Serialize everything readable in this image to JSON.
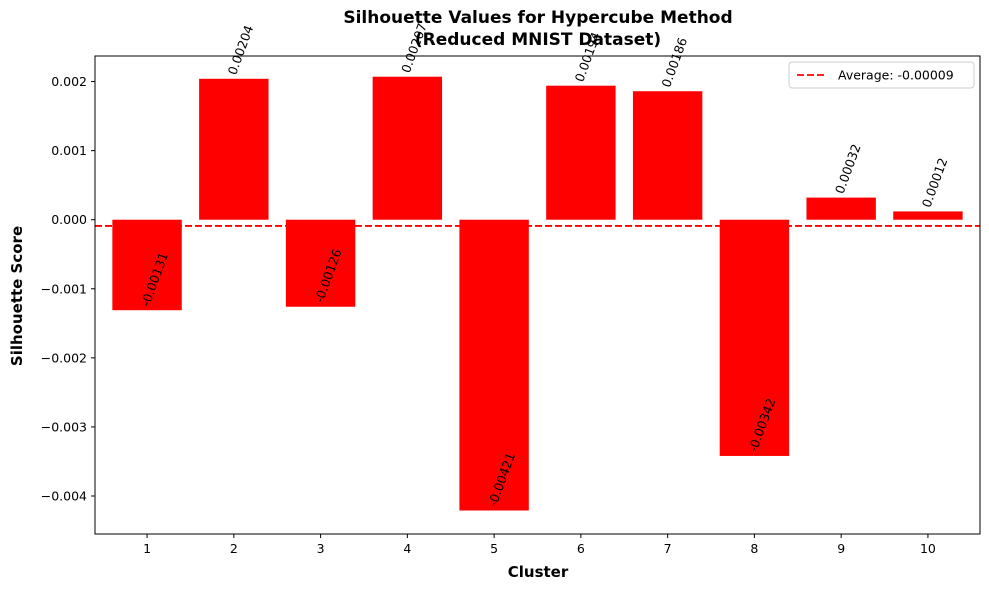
{
  "chart_data": {
    "type": "bar",
    "title": [
      "Silhouette Values for Hypercube Method",
      "(Reduced MNIST Dataset)"
    ],
    "xlabel": "Cluster",
    "ylabel": "Silhouette Score",
    "categories": [
      "1",
      "2",
      "3",
      "4",
      "5",
      "6",
      "7",
      "8",
      "9",
      "10"
    ],
    "values": [
      -0.00131,
      0.00204,
      -0.00126,
      0.00207,
      -0.00421,
      0.00194,
      0.00186,
      -0.00342,
      0.00032,
      0.00012
    ],
    "value_labels": [
      "-0.00131",
      "0.00204",
      "-0.00126",
      "0.00207",
      "-0.00421",
      "0.00194",
      "0.00186",
      "-0.00342",
      "0.00032",
      "0.00012"
    ],
    "ylim": [
      -0.00455,
      0.00237
    ],
    "yticks": [
      -0.004,
      -0.003,
      -0.002,
      -0.001,
      0.0,
      0.001,
      0.002
    ],
    "ytick_labels": [
      "−0.004",
      "−0.003",
      "−0.002",
      "−0.001",
      "0.000",
      "0.001",
      "0.002"
    ],
    "bar_color": "#ff0000",
    "average": {
      "value": -9e-05,
      "label": "Average: -0.00009",
      "color": "#ff0000",
      "style": "dashed"
    },
    "legend_position": "top-right",
    "grid": false
  }
}
